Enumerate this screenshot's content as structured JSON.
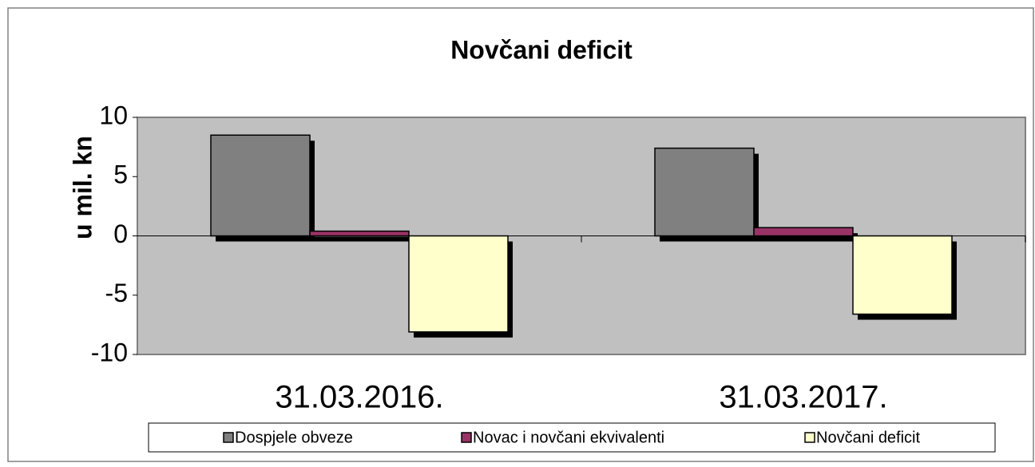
{
  "chart_data": {
    "type": "bar",
    "title": "Novčani deficit",
    "y_label": "u mil. kn",
    "categories": [
      "31.03.2016.",
      "31.03.2017."
    ],
    "series": [
      {
        "name": "Dospjele obveze",
        "color": "#808080",
        "values": [
          8.5,
          7.4
        ]
      },
      {
        "name": "Novac i novčani ekvivalenti",
        "color": "#993366",
        "values": [
          0.4,
          0.7
        ]
      },
      {
        "name": "Novčani deficit",
        "color": "#ffffcc",
        "values": [
          -8.1,
          -6.6
        ]
      }
    ],
    "ylim": [
      -10,
      10
    ],
    "yticks": [
      -10,
      -5,
      0,
      5,
      10
    ],
    "legend": "bottom"
  }
}
